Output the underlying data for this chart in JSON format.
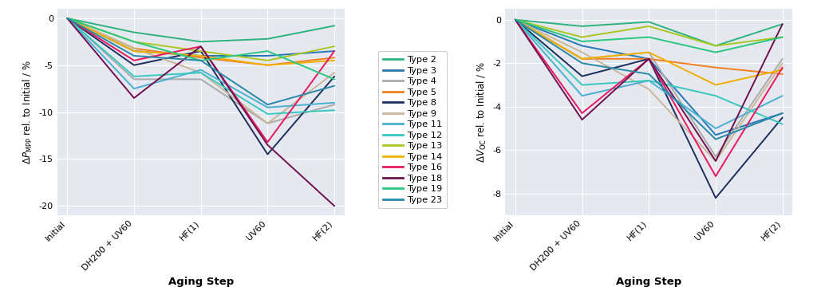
{
  "x_labels": [
    "Initial",
    "DH200 + UV60",
    "HF(1)",
    "UV60",
    "HF(2)"
  ],
  "types": [
    "Type 2",
    "Type 3",
    "Type 4",
    "Type 5",
    "Type 8",
    "Type 9",
    "Type 11",
    "Type 12",
    "Type 13",
    "Type 14",
    "Type 16",
    "Type 18",
    "Type 19",
    "Type 23"
  ],
  "colors": {
    "Type 2": "#2db37e",
    "Type 3": "#2478b4",
    "Type 4": "#aaaaaa",
    "Type 5": "#f08020",
    "Type 8": "#1c2e5e",
    "Type 9": "#c8b898",
    "Type 11": "#4ab0d0",
    "Type 12": "#38c8c0",
    "Type 13": "#a8c820",
    "Type 14": "#f0b000",
    "Type 16": "#e81860",
    "Type 18": "#701050",
    "Type 19": "#28c880",
    "Type 23": "#2888a8"
  },
  "pmpp_data": {
    "Type 2": [
      0,
      -1.5,
      -2.5,
      -2.2,
      -0.8
    ],
    "Type 3": [
      0,
      -3.5,
      -4.0,
      -4.0,
      -3.5
    ],
    "Type 4": [
      0,
      -6.5,
      -6.5,
      -11.2,
      -9.2
    ],
    "Type 5": [
      0,
      -3.2,
      -4.2,
      -5.0,
      -4.2
    ],
    "Type 8": [
      0,
      -5.0,
      -3.5,
      -14.5,
      -6.2
    ],
    "Type 9": [
      0,
      -3.2,
      -5.8,
      -11.2,
      -5.8
    ],
    "Type 11": [
      0,
      -7.5,
      -5.5,
      -9.5,
      -9.0
    ],
    "Type 12": [
      0,
      -6.2,
      -5.8,
      -10.2,
      -9.8
    ],
    "Type 13": [
      0,
      -2.5,
      -3.5,
      -4.5,
      -3.0
    ],
    "Type 14": [
      0,
      -3.5,
      -4.0,
      -5.0,
      -4.5
    ],
    "Type 16": [
      0,
      -4.5,
      -3.0,
      -13.2,
      -3.5
    ],
    "Type 18": [
      0,
      -8.5,
      -3.0,
      -13.5,
      -20.0
    ],
    "Type 19": [
      0,
      -2.5,
      -4.5,
      -3.5,
      -6.5
    ],
    "Type 23": [
      0,
      -4.0,
      -4.5,
      -9.2,
      -7.2
    ]
  },
  "voc_data": {
    "Type 2": [
      0,
      -0.3,
      -0.1,
      -1.2,
      -0.2
    ],
    "Type 3": [
      0,
      -1.2,
      -1.8,
      -5.3,
      -4.3
    ],
    "Type 4": [
      0,
      -1.8,
      -1.5,
      -6.3,
      -1.8
    ],
    "Type 5": [
      0,
      -1.8,
      -1.8,
      -2.2,
      -2.5
    ],
    "Type 8": [
      0,
      -2.6,
      -1.8,
      -8.2,
      -4.5
    ],
    "Type 9": [
      0,
      -1.5,
      -3.2,
      -6.5,
      -2.0
    ],
    "Type 11": [
      0,
      -3.5,
      -2.8,
      -5.0,
      -3.5
    ],
    "Type 12": [
      0,
      -3.0,
      -2.8,
      -3.5,
      -4.8
    ],
    "Type 13": [
      0,
      -0.8,
      -0.3,
      -1.2,
      -0.8
    ],
    "Type 14": [
      0,
      -1.8,
      -1.5,
      -3.0,
      -2.3
    ],
    "Type 16": [
      0,
      -4.3,
      -1.8,
      -7.2,
      -2.2
    ],
    "Type 18": [
      0,
      -4.6,
      -1.8,
      -6.5,
      -0.2
    ],
    "Type 19": [
      0,
      -1.0,
      -0.8,
      -1.5,
      -0.8
    ],
    "Type 23": [
      0,
      -2.0,
      -2.5,
      -5.5,
      -4.3
    ]
  },
  "pmpp_ylim": [
    -21,
    1
  ],
  "voc_ylim": [
    -9,
    0.5
  ],
  "pmpp_yticks": [
    0,
    -5,
    -10,
    -15,
    -20
  ],
  "voc_yticks": [
    0,
    -2,
    -4,
    -6,
    -8
  ],
  "xlabel": "Aging Step",
  "pmpp_ylabel": "$\\Delta P_{\\mathrm{MPP}}$ rel. to Initial / %",
  "voc_ylabel": "$\\Delta V_{\\mathrm{OC}}$ rel. to Initial / %",
  "bg_color": "#e6e8f0",
  "fig_color": "#ffffff",
  "legend_title": ""
}
